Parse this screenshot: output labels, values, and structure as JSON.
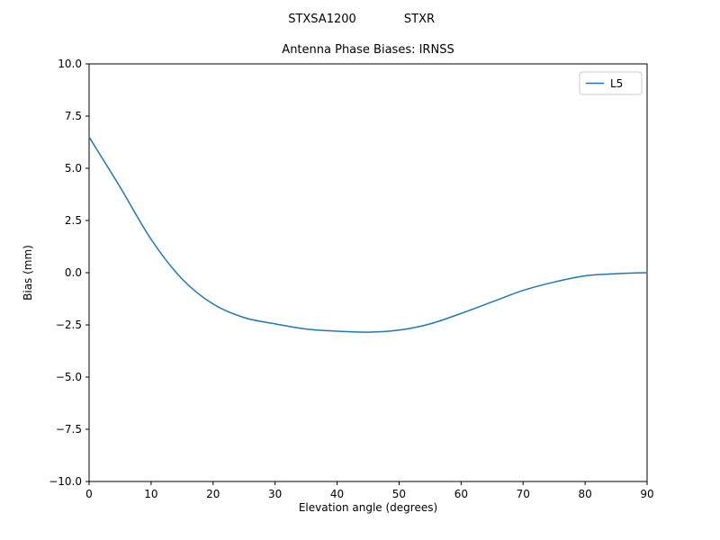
{
  "figure": {
    "suptitle_left": "STXSA1200",
    "suptitle_right": "STXR",
    "background": "#ffffff"
  },
  "chart_data": {
    "type": "line",
    "title": "Antenna Phase Biases: IRNSS",
    "xlabel": "Elevation angle (degrees)",
    "ylabel": "Bias (mm)",
    "xlim": [
      0,
      90
    ],
    "ylim": [
      -10,
      10
    ],
    "xticks": [
      0,
      10,
      20,
      30,
      40,
      50,
      60,
      70,
      80,
      90
    ],
    "yticks": [
      -10.0,
      -7.5,
      -5.0,
      -2.5,
      0.0,
      2.5,
      5.0,
      7.5,
      10.0
    ],
    "grid": false,
    "legend": {
      "position": "upper right",
      "entries": [
        "L5"
      ]
    },
    "series": [
      {
        "name": "L5",
        "color": "#1f77b4",
        "x": [
          0,
          5,
          10,
          15,
          20,
          25,
          30,
          35,
          40,
          45,
          50,
          55,
          60,
          65,
          70,
          75,
          80,
          85,
          90
        ],
        "y": [
          6.5,
          4.1,
          1.6,
          -0.3,
          -1.5,
          -2.15,
          -2.45,
          -2.7,
          -2.8,
          -2.85,
          -2.75,
          -2.45,
          -1.95,
          -1.4,
          -0.85,
          -0.45,
          -0.15,
          -0.05,
          0.0
        ]
      }
    ]
  }
}
